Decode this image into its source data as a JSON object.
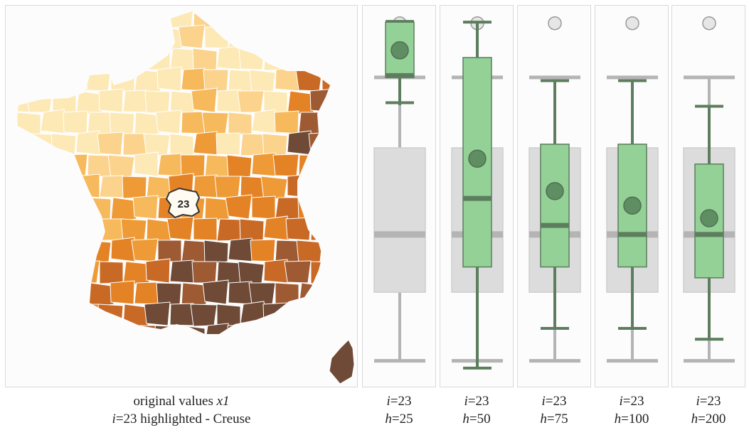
{
  "chart_data": [
    {
      "type": "choropleth-map",
      "caption": {
        "line1_prefix": "original values ",
        "line1_var": "x1",
        "line2_i": "i",
        "line2_rest": "=23 highlighted - Creuse"
      },
      "highlight": {
        "label": "23"
      },
      "colors": {
        "scale": [
          "#fde9b6",
          "#fbd38c",
          "#f6b95c",
          "#ee9a36",
          "#e48325",
          "#c86a26",
          "#9d5a33",
          "#6e4a37"
        ],
        "highlight_fill": "#fffbf2",
        "border": "#ffffff"
      }
    },
    {
      "type": "boxplot",
      "label_i": "i",
      "value_i": "=23",
      "label_h": "h",
      "value_h": "=25",
      "ylim": [
        0,
        1
      ],
      "reference": {
        "whisker_low": 0.04,
        "q1": 0.23,
        "median": 0.39,
        "q3": 0.63,
        "whisker_high": 0.825,
        "outlier": 0.975
      },
      "local": {
        "whisker_low": 0.748,
        "q1": 0.825,
        "median": 0.83,
        "q3": 0.978,
        "whisker_high": 0.98,
        "mean": 0.9,
        "cap_low": 0.755
      }
    },
    {
      "type": "boxplot",
      "label_i": "i",
      "value_i": "=23",
      "label_h": "h",
      "value_h": "=50",
      "ylim": [
        0,
        1
      ],
      "reference": {
        "whisker_low": 0.04,
        "q1": 0.23,
        "median": 0.39,
        "q3": 0.63,
        "whisker_high": 0.825,
        "outlier": 0.975
      },
      "local": {
        "whisker_low": 0.02,
        "q1": 0.3,
        "median": 0.49,
        "q3": 0.88,
        "whisker_high": 0.978,
        "mean": 0.6
      }
    },
    {
      "type": "boxplot",
      "label_i": "i",
      "value_i": "=23",
      "label_h": "h",
      "value_h": "=75",
      "ylim": [
        0,
        1
      ],
      "reference": {
        "whisker_low": 0.04,
        "q1": 0.23,
        "median": 0.39,
        "q3": 0.63,
        "whisker_high": 0.825,
        "outlier": 0.975
      },
      "local": {
        "whisker_low": 0.13,
        "q1": 0.3,
        "median": 0.415,
        "q3": 0.64,
        "whisker_high": 0.816,
        "mean": 0.51
      }
    },
    {
      "type": "boxplot",
      "label_i": "i",
      "value_i": "=23",
      "label_h": "h",
      "value_h": "=100",
      "ylim": [
        0,
        1
      ],
      "reference": {
        "whisker_low": 0.04,
        "q1": 0.23,
        "median": 0.39,
        "q3": 0.63,
        "whisker_high": 0.825,
        "outlier": 0.975
      },
      "local": {
        "whisker_low": 0.13,
        "q1": 0.3,
        "median": 0.39,
        "q3": 0.64,
        "whisker_high": 0.816,
        "mean": 0.47
      }
    },
    {
      "type": "boxplot",
      "label_i": "i",
      "value_i": "=23",
      "label_h": "h",
      "value_h": "=200",
      "ylim": [
        0,
        1
      ],
      "reference": {
        "whisker_low": 0.04,
        "q1": 0.23,
        "median": 0.39,
        "q3": 0.63,
        "whisker_high": 0.825,
        "outlier": 0.975
      },
      "local": {
        "whisker_low": 0.1,
        "q1": 0.27,
        "median": 0.39,
        "q3": 0.585,
        "whisker_high": 0.745,
        "mean": 0.435
      }
    }
  ],
  "colors": {
    "reference_box": "#dcdcdc",
    "reference_line": "#b4b4b4",
    "local_box": "#93d197",
    "local_line": "#5c7e5e",
    "local_mean": "#5f8e63",
    "outlier_fill": "#e6e6e6"
  }
}
